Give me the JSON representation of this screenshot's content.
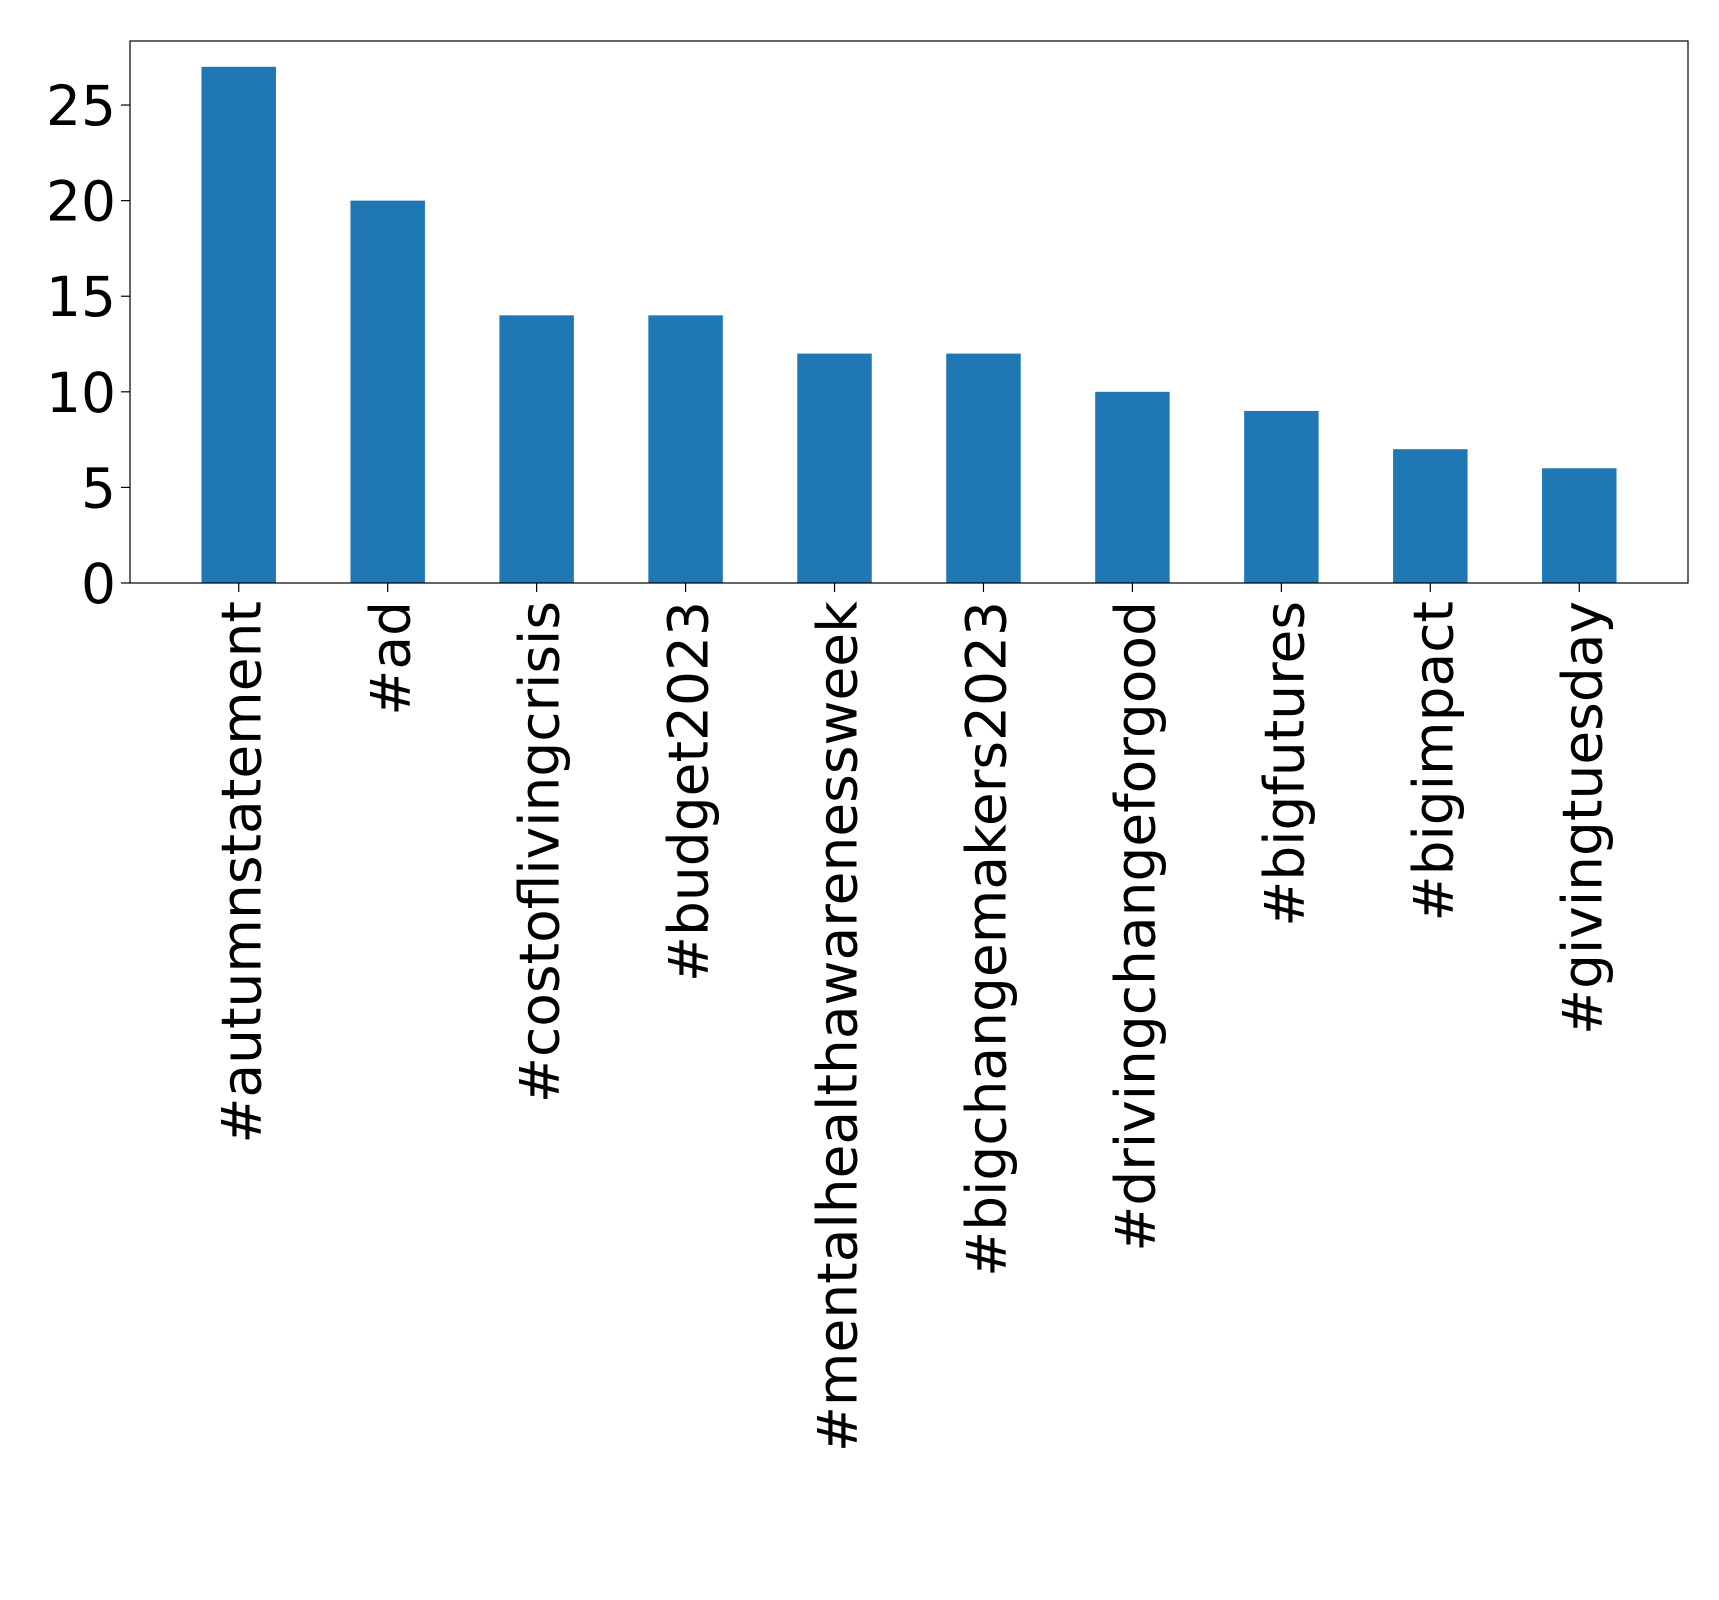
{
  "chart_data": {
    "type": "bar",
    "categories": [
      "#autumnstatement",
      "#ad",
      "#costoflivingcrisis",
      "#budget2023",
      "#mentalhealthawarenessweek",
      "#bigchangemakers2023",
      "#drivingchangeforgood",
      "#bigfutures",
      "#bigimpact",
      "#givingtuesday"
    ],
    "values": [
      27,
      20,
      14,
      14,
      12,
      12,
      10,
      9,
      7,
      6
    ],
    "yticks": [
      "0",
      "5",
      "10",
      "15",
      "20",
      "25"
    ],
    "ylim": [
      0,
      28.35
    ],
    "bar_color": "#1f77b4",
    "title": "",
    "xlabel": "",
    "ylabel": "",
    "grid": false,
    "legend": "none"
  }
}
